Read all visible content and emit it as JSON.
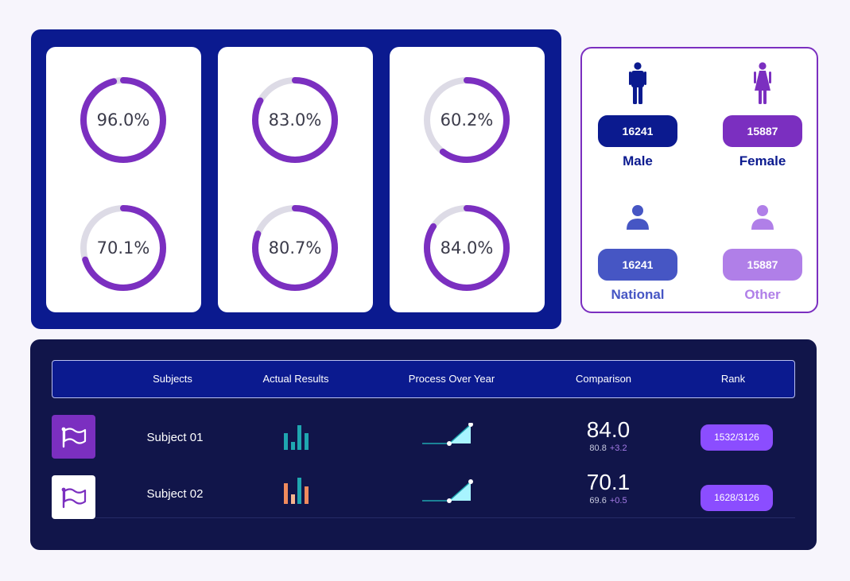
{
  "gauges": [
    {
      "label": "96.0%",
      "value": 0.96
    },
    {
      "label": "70.1%",
      "value": 0.701
    },
    {
      "label": "83.0%",
      "value": 0.83
    },
    {
      "label": "80.7%",
      "value": 0.807
    },
    {
      "label": "60.2%",
      "value": 0.602
    },
    {
      "label": "84.0%",
      "value": 0.84
    }
  ],
  "demographics": {
    "male": {
      "count": "16241",
      "label": "Male",
      "icon": "male-icon",
      "color": "#0b1a8f"
    },
    "female": {
      "count": "15887",
      "label": "Female",
      "icon": "female-icon",
      "color": "#7b2fc0"
    },
    "national": {
      "count": "16241",
      "label": "National",
      "icon": "person-icon",
      "color": "#4656c4"
    },
    "other": {
      "count": "15887",
      "label": "Other",
      "icon": "person-icon",
      "color": "#b07fe8"
    }
  },
  "table": {
    "headers": {
      "subjects": "Subjects",
      "actual_results": "Actual Results",
      "process": "Process Over Year",
      "comparison": "Comparison",
      "rank": "Rank"
    },
    "rows": [
      {
        "name": "Subject 01",
        "icon": "flag-icon",
        "bars": [
          0.62,
          0.3,
          0.92,
          0.62
        ],
        "bar_colors": [
          "#1fa6b0",
          "#1fa6b0",
          "#1fa6b0",
          "#1fa6b0"
        ],
        "score": "84.0",
        "previous": "80.8",
        "delta": "+3.2",
        "rank": "1532/3126"
      },
      {
        "name": "Subject 02",
        "icon": "flag-icon",
        "bars": [
          0.75,
          0.35,
          0.97,
          0.65
        ],
        "bar_colors": [
          "#f08a5d",
          "#f4b48f",
          "#1fa6b0",
          "#f08a5d"
        ],
        "score": "70.1",
        "previous": "69.6",
        "delta": "+0.5",
        "rank": "1628/3126"
      }
    ]
  },
  "colors": {
    "gauge_fill": "#7b2fc0",
    "gauge_track": "#dddbe6",
    "panel_dark": "#0b1a8f",
    "table_bg": "#11154a",
    "rank_pill": "#8b4dff",
    "spark_fill": "#a8f4ff"
  }
}
